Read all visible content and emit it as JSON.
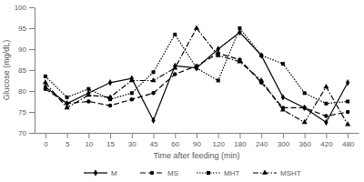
{
  "chart_data": {
    "type": "line",
    "x_label": "Time after feeding (min)",
    "y_label": "Glucose (mg/dL)",
    "categories": [
      "0",
      "5",
      "10",
      "15",
      "30",
      "45",
      "60",
      "90",
      "120",
      "180",
      "240",
      "300",
      "360",
      "420",
      "480"
    ],
    "series": [
      {
        "name": "M",
        "color": "#000000",
        "marker": "diamond",
        "line_style": "solid",
        "values": [
          81,
          77,
          79.5,
          82,
          83,
          73,
          86,
          85.5,
          90,
          94,
          88.5,
          78.5,
          76,
          72.5,
          82
        ]
      },
      {
        "name": "MS",
        "color": "#000000",
        "marker": "circle",
        "line_style": "dashed",
        "values": [
          80.5,
          77,
          77.5,
          76.5,
          78,
          79.5,
          84,
          86,
          89,
          87.5,
          82,
          76,
          76,
          74,
          75
        ]
      },
      {
        "name": "MHT",
        "color": "#000000",
        "marker": "square",
        "line_style": "dotted",
        "values": [
          83.5,
          78.5,
          80.5,
          78,
          79.5,
          84.5,
          93.5,
          85.5,
          82.5,
          95,
          88.5,
          86.5,
          79.5,
          77,
          77.5
        ]
      },
      {
        "name": "MSHT",
        "color": "#000000",
        "marker": "triangle",
        "line_style": "dashdot",
        "values": [
          82,
          76,
          79,
          78.5,
          82.5,
          82.5,
          85.5,
          95,
          88.5,
          87,
          82.5,
          75.5,
          72.5,
          81,
          72
        ]
      }
    ],
    "ylim": [
      70,
      100
    ],
    "yticks": [
      70,
      75,
      80,
      85,
      90,
      95,
      100
    ],
    "grid": false,
    "legend": "bottom"
  }
}
